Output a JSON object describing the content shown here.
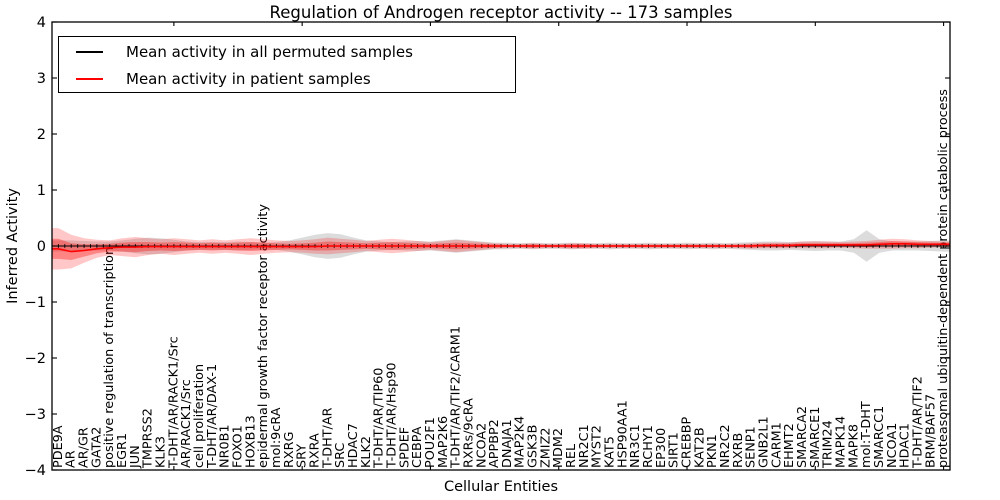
{
  "figure": {
    "title": "Regulation of Androgen receptor activity -- 173 samples",
    "xlabel": "Cellular Entities",
    "ylabel": "Inferred Activity"
  },
  "legend": {
    "position": "upper left",
    "entries": [
      {
        "label": "Mean activity in all permuted samples",
        "color": "#000000"
      },
      {
        "label": "Mean activity in patient samples",
        "color": "#ff0000"
      }
    ]
  },
  "chart_data": {
    "type": "line",
    "title": "Regulation of Androgen receptor activity -- 173 samples",
    "xlabel": "Cellular Entities",
    "ylabel": "Inferred Activity",
    "ylim": [
      -4,
      4
    ],
    "yticks": [
      -4,
      -3,
      -2,
      -1,
      0,
      1,
      2,
      3,
      4
    ],
    "xtick_interval": 10,
    "grid": false,
    "legend_position": "upper left",
    "colors": {
      "permuted_line": "#000000",
      "patient_line": "#ff0000",
      "permuted_band": "rgba(128,128,128,0.28)",
      "patient_band_outer": "rgba(255,0,0,0.22)",
      "patient_band_inner": "rgba(255,0,0,0.33)"
    },
    "categories": [
      "PDE9A",
      "AR",
      "AR/GR",
      "GATA2",
      "positive regulation of transcription",
      "EGR1",
      "JUN",
      "TMPRSS2",
      "KLK3",
      "T-DHT/AR/RACK1/Src",
      "AR/RACK1/Src",
      "cell proliferation",
      "T-DHT/AR/DAX-1",
      "NR0B1",
      "FOXO1",
      "HOXB13",
      "epidermal growth factor receptor activity",
      "mol:9cRA",
      "RXRG",
      "SRY",
      "RXRA",
      "T-DHT/AR",
      "SRC",
      "HDAC7",
      "KLK2",
      "T-DHT/AR/TIP60",
      "T-DHT/AR/Hsp90",
      "SPDEF",
      "CEBPA",
      "POU2F1",
      "MAP2K6",
      "T-DHT/AR/TIF2/CARM1",
      "RXRs/9cRA",
      "NCOA2",
      "APPBP2",
      "DNAJA1",
      "MAP2K4",
      "GSK3B",
      "ZMIZ2",
      "MDM2",
      "REL",
      "NR2C1",
      "MYST2",
      "KAT5",
      "HSP90AA1",
      "NR3C1",
      "RCHY1",
      "EP300",
      "SIRT1",
      "CREBBP",
      "KAT2B",
      "PKN1",
      "NR2C2",
      "RXRB",
      "SENP1",
      "GNB2L1",
      "CARM1",
      "EHMT2",
      "SMARCA2",
      "SMARCE1",
      "TRIM24",
      "MAPK14",
      "MAPK8",
      "mol:T-DHT",
      "SMARCC1",
      "NCOA1",
      "HDAC1",
      "T-DHT/AR/TIF2",
      "BRM/BAF57",
      "proteasomal ubiquitin-dependent protein catabolic process"
    ],
    "series": [
      {
        "name": "Mean activity in all permuted samples",
        "values": [
          0,
          0,
          0,
          0,
          0,
          0,
          0,
          0,
          0,
          0,
          0,
          0,
          0,
          0,
          0,
          0,
          0,
          0,
          0,
          0,
          0,
          0,
          0,
          0,
          0,
          0,
          0,
          0,
          0,
          0,
          0,
          0,
          0,
          0,
          0,
          0,
          0,
          0,
          0,
          0,
          0,
          0,
          0,
          0,
          0,
          0,
          0,
          0,
          0,
          0,
          0,
          0,
          0,
          0,
          0,
          0,
          0,
          0,
          0,
          0,
          0,
          0,
          0,
          0,
          0,
          0,
          0,
          0,
          0,
          0
        ],
        "band_halfwidth": [
          0.1,
          0.1,
          0.09,
          0.08,
          0.08,
          0.1,
          0.13,
          0.15,
          0.14,
          0.11,
          0.08,
          0.07,
          0.07,
          0.07,
          0.08,
          0.07,
          0.06,
          0.07,
          0.1,
          0.15,
          0.2,
          0.23,
          0.21,
          0.15,
          0.1,
          0.08,
          0.07,
          0.08,
          0.09,
          0.08,
          0.1,
          0.12,
          0.1,
          0.08,
          0.06,
          0.06,
          0.05,
          0.06,
          0.05,
          0.05,
          0.06,
          0.05,
          0.05,
          0.06,
          0.05,
          0.05,
          0.06,
          0.05,
          0.05,
          0.06,
          0.05,
          0.06,
          0.05,
          0.06,
          0.07,
          0.08,
          0.08,
          0.07,
          0.08,
          0.09,
          0.08,
          0.08,
          0.12,
          0.28,
          0.12,
          0.08,
          0.08,
          0.08,
          0.09,
          0.1
        ]
      },
      {
        "name": "Mean activity in patient samples",
        "values": [
          -0.05,
          -0.1,
          -0.08,
          -0.05,
          -0.03,
          -0.02,
          -0.02,
          -0.01,
          -0.01,
          -0.01,
          -0.01,
          -0.01,
          -0.01,
          -0.01,
          -0.01,
          -0.01,
          -0.01,
          -0.01,
          -0.01,
          -0.01,
          -0.01,
          0,
          0,
          0,
          0,
          0,
          0,
          0,
          0,
          0,
          0,
          0,
          0,
          0,
          0,
          0,
          0,
          0,
          0,
          0,
          0,
          0,
          0,
          0,
          0,
          0,
          0,
          0,
          0,
          0,
          0,
          0,
          0,
          0,
          0,
          0.01,
          0.01,
          0.01,
          0.02,
          0.02,
          0.02,
          0.02,
          0.02,
          0.02,
          0.03,
          0.04,
          0.04,
          0.03,
          0.03,
          0.03
        ],
        "band_halfwidth": [
          0.37,
          0.3,
          0.22,
          0.16,
          0.13,
          0.16,
          0.18,
          0.15,
          0.13,
          0.15,
          0.13,
          0.11,
          0.13,
          0.11,
          0.13,
          0.15,
          0.13,
          0.11,
          0.1,
          0.11,
          0.13,
          0.15,
          0.13,
          0.11,
          0.09,
          0.11,
          0.13,
          0.11,
          0.09,
          0.07,
          0.09,
          0.11,
          0.09,
          0.07,
          0.05,
          0.04,
          0.04,
          0.05,
          0.04,
          0.04,
          0.05,
          0.05,
          0.04,
          0.04,
          0.04,
          0.04,
          0.04,
          0.04,
          0.04,
          0.04,
          0.04,
          0.04,
          0.04,
          0.04,
          0.05,
          0.05,
          0.05,
          0.05,
          0.06,
          0.06,
          0.06,
          0.05,
          0.06,
          0.07,
          0.08,
          0.09,
          0.08,
          0.07,
          0.06,
          0.05
        ],
        "inner_band_halfwidth": [
          0.18,
          0.15,
          0.11,
          0.08,
          0.07,
          0.08,
          0.09,
          0.08,
          0.07,
          0.08,
          0.07,
          0.06,
          0.07,
          0.06,
          0.07,
          0.08,
          0.07,
          0.06,
          0.05,
          0.06,
          0.07,
          0.08,
          0.07,
          0.06,
          0.05,
          0.06,
          0.07,
          0.06,
          0.05,
          0.04,
          0.05,
          0.06,
          0.05,
          0.04,
          0.03,
          0.02,
          0.02,
          0.03,
          0.02,
          0.02,
          0.03,
          0.03,
          0.02,
          0.02,
          0.02,
          0.02,
          0.02,
          0.02,
          0.02,
          0.02,
          0.02,
          0.02,
          0.02,
          0.02,
          0.03,
          0.03,
          0.03,
          0.03,
          0.03,
          0.03,
          0.03,
          0.03,
          0.03,
          0.04,
          0.04,
          0.05,
          0.04,
          0.04,
          0.03,
          0.03
        ]
      }
    ]
  }
}
